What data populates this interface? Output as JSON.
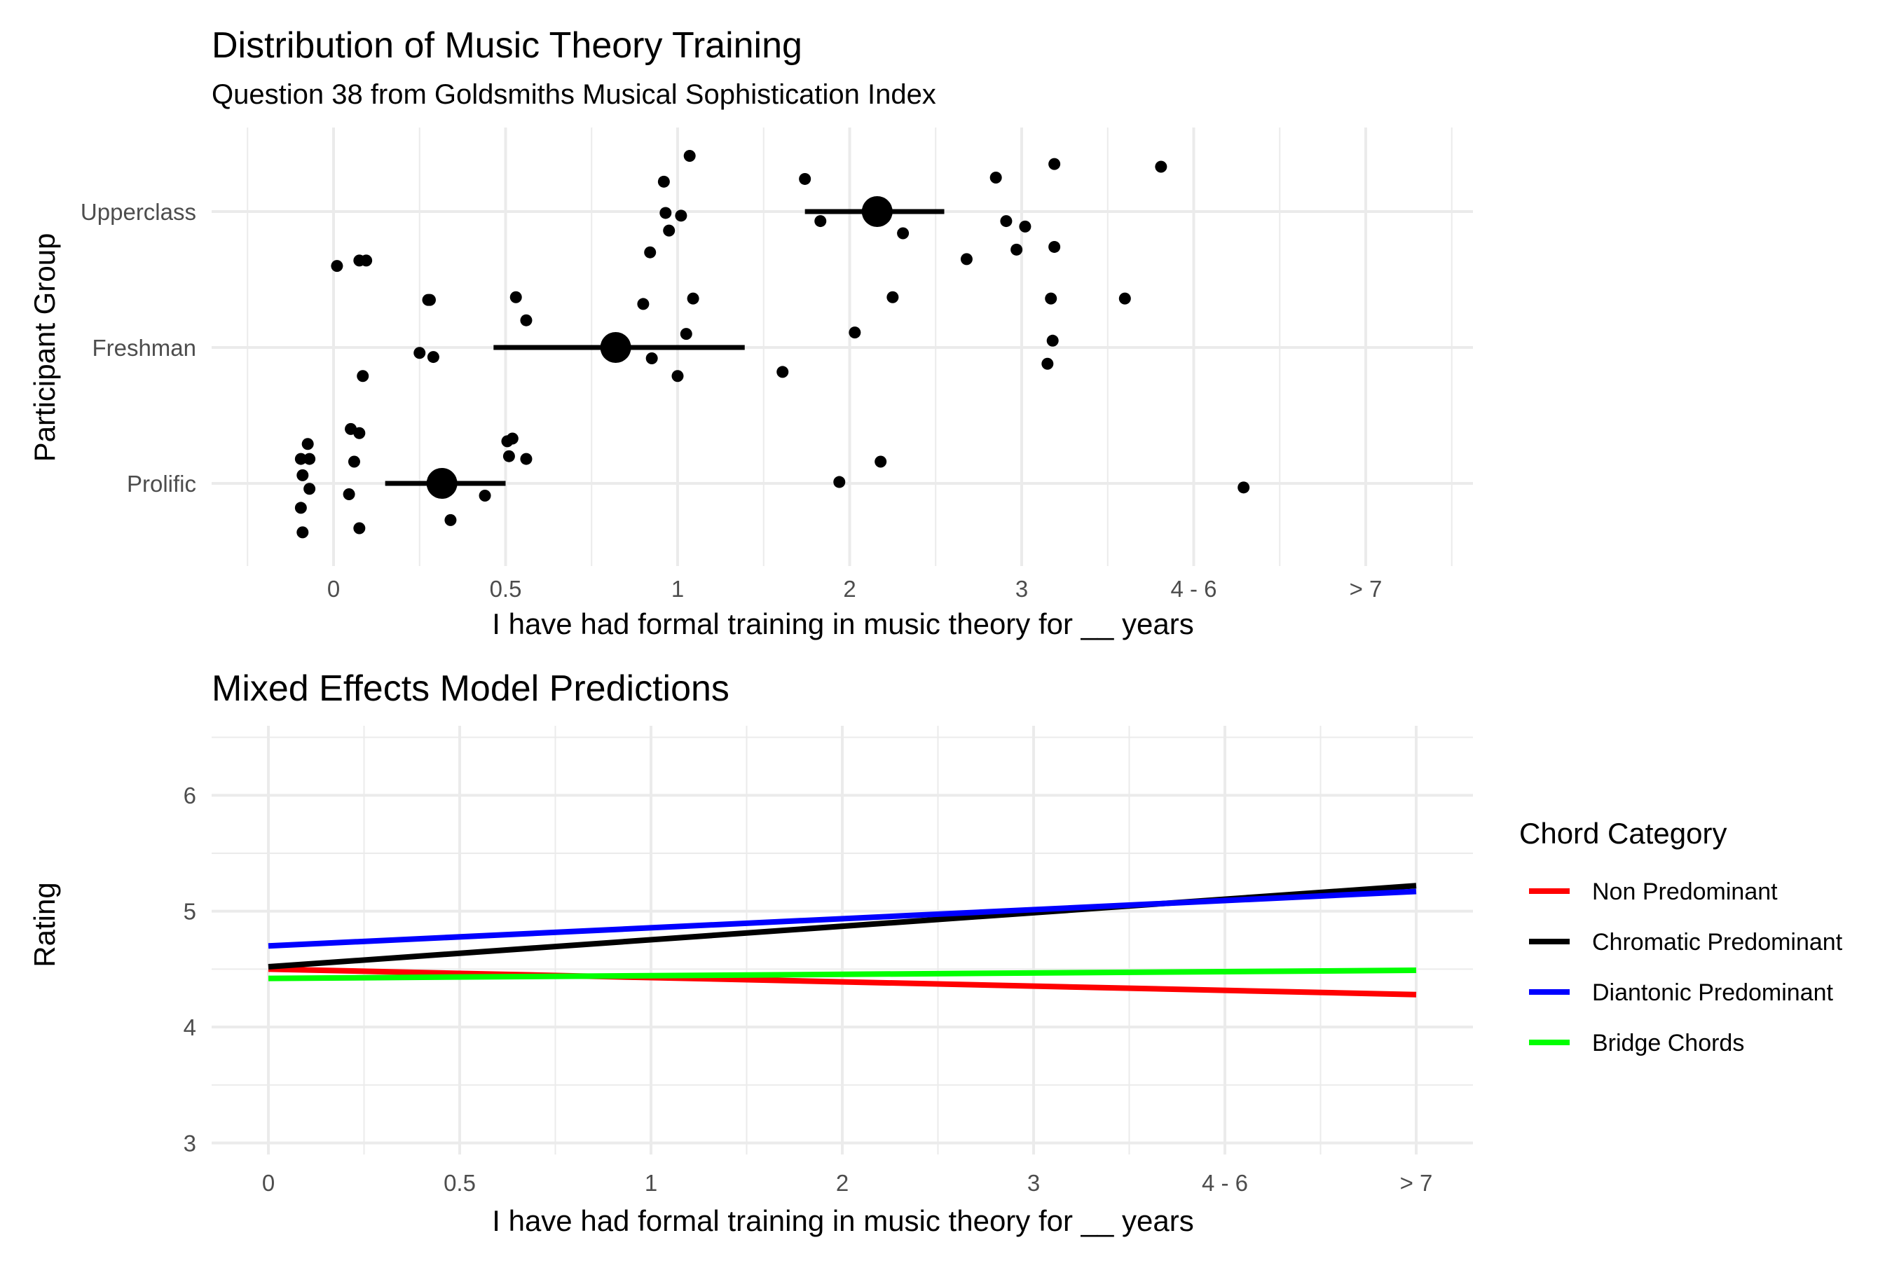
{
  "chart_data": [
    {
      "type": "scatter",
      "title": "Distribution of Music Theory Training",
      "subtitle": "Question 38 from Goldsmiths Musical Sophistication Index",
      "xlabel": "I have had formal training in music theory for __ years",
      "ylabel": "Participant Group",
      "x_categories": [
        "0",
        "0.5",
        "1",
        "2",
        "3",
        "4 - 6",
        "> 7"
      ],
      "y_categories": [
        "Prolific",
        "Freshman",
        "Upperclass"
      ],
      "grid": true,
      "points": [
        {
          "x": 0.19,
          "y": 1.64
        },
        {
          "x": 0.02,
          "y": 1.6
        },
        {
          "x": 0.15,
          "y": 1.64
        },
        {
          "x": 0.55,
          "y": 1.35
        },
        {
          "x": 0.17,
          "y": 0.79
        },
        {
          "x": -0.19,
          "y": -0.18
        },
        {
          "x": -0.18,
          "y": 0.06
        },
        {
          "x": -0.14,
          "y": 0.18
        },
        {
          "x": -0.15,
          "y": 0.29
        },
        {
          "x": -0.19,
          "y": 0.18
        },
        {
          "x": -0.14,
          "y": -0.04
        },
        {
          "x": 0.1,
          "y": 0.4
        },
        {
          "x": 0.12,
          "y": 0.16
        },
        {
          "x": 0.15,
          "y": 0.37
        },
        {
          "x": 0.09,
          "y": -0.08
        },
        {
          "x": -0.18,
          "y": -0.36
        },
        {
          "x": 0.15,
          "y": -0.33
        },
        {
          "x": 0.56,
          "y": 1.35
        },
        {
          "x": 0.5,
          "y": 0.96
        },
        {
          "x": 0.58,
          "y": 0.93
        },
        {
          "x": 0.68,
          "y": -0.27
        },
        {
          "x": 0.88,
          "y": -0.09
        },
        {
          "x": 1.06,
          "y": 1.37
        },
        {
          "x": 1.12,
          "y": 1.2
        },
        {
          "x": 1.01,
          "y": 0.31
        },
        {
          "x": 1.04,
          "y": 0.33
        },
        {
          "x": 1.02,
          "y": 0.2
        },
        {
          "x": 1.12,
          "y": 0.18
        },
        {
          "x": 2.07,
          "y": 2.41
        },
        {
          "x": 1.92,
          "y": 2.22
        },
        {
          "x": 1.93,
          "y": 1.99
        },
        {
          "x": 2.02,
          "y": 1.97
        },
        {
          "x": 1.95,
          "y": 1.86
        },
        {
          "x": 1.84,
          "y": 1.7
        },
        {
          "x": 1.8,
          "y": 1.32
        },
        {
          "x": 2.09,
          "y": 1.36
        },
        {
          "x": 2.05,
          "y": 1.1
        },
        {
          "x": 1.85,
          "y": 0.92
        },
        {
          "x": 2.0,
          "y": 0.79
        },
        {
          "x": 2.61,
          "y": 0.82
        },
        {
          "x": 2.74,
          "y": 2.24
        },
        {
          "x": 2.83,
          "y": 1.93
        },
        {
          "x": 3.31,
          "y": 1.84
        },
        {
          "x": 3.17,
          "y": 1.94
        },
        {
          "x": 3.25,
          "y": 1.37
        },
        {
          "x": 3.03,
          "y": 1.11
        },
        {
          "x": 3.18,
          "y": 0.16
        },
        {
          "x": 2.94,
          "y": 0.01
        },
        {
          "x": 3.68,
          "y": 1.65
        },
        {
          "x": 3.85,
          "y": 2.25
        },
        {
          "x": 3.91,
          "y": 1.93
        },
        {
          "x": 4.02,
          "y": 1.89
        },
        {
          "x": 3.97,
          "y": 1.72
        },
        {
          "x": 4.19,
          "y": 1.74
        },
        {
          "x": 4.19,
          "y": 2.35
        },
        {
          "x": 4.17,
          "y": 1.36
        },
        {
          "x": 4.18,
          "y": 1.05
        },
        {
          "x": 4.15,
          "y": 0.88
        },
        {
          "x": 4.6,
          "y": 1.36
        },
        {
          "x": 4.81,
          "y": 2.33
        },
        {
          "x": 5.29,
          "y": -0.03
        }
      ],
      "summary": [
        {
          "group": "Upperclass",
          "mean": 3.16,
          "low": 2.74,
          "high": 3.55
        },
        {
          "group": "Freshman",
          "mean": 1.64,
          "low": 0.93,
          "high": 2.39
        },
        {
          "group": "Prolific",
          "mean": 0.63,
          "low": 0.3,
          "high": 1.0
        }
      ]
    },
    {
      "type": "line",
      "title": "Mixed Effects Model Predictions",
      "xlabel": "I have had formal training in music theory for __ years",
      "ylabel": "Rating",
      "x_categories": [
        "0",
        "0.5",
        "1",
        "2",
        "3",
        "4 - 6",
        "> 7"
      ],
      "x": [
        0,
        6
      ],
      "ylim": [
        2.9,
        6.6
      ],
      "y_ticks": [
        3,
        4,
        5,
        6
      ],
      "grid": true,
      "legend_title": "Chord Category",
      "legend_position": "right",
      "series": [
        {
          "name": "Non Predominant",
          "color": "#ff0000",
          "values": [
            4.5,
            4.28
          ]
        },
        {
          "name": "Chromatic Predominant",
          "color": "#000000",
          "values": [
            4.52,
            5.22
          ]
        },
        {
          "name": "Diantonic Predominant",
          "color": "#0000ff",
          "values": [
            4.7,
            5.17
          ]
        },
        {
          "name": "Bridge Chords",
          "color": "#00ff00",
          "values": [
            4.42,
            4.49
          ]
        }
      ]
    }
  ]
}
